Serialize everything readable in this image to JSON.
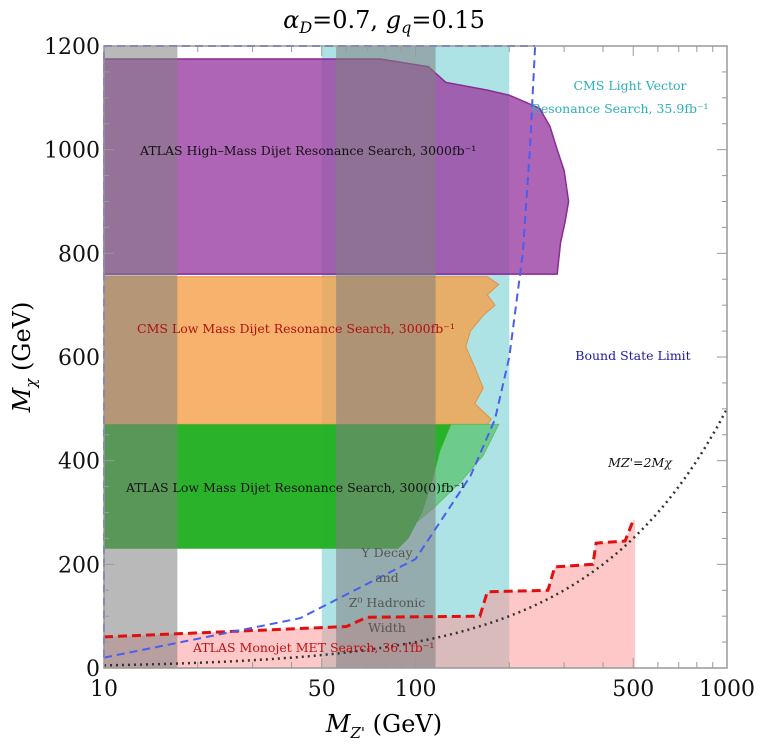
{
  "chart_data": {
    "type": "area",
    "title": "αD=0.7, gq=0.15",
    "xlabel": "MZ' (GeV)",
    "ylabel": "Mχ (GeV)",
    "xscale": "log",
    "xlim": [
      10,
      1000
    ],
    "ylim": [
      0,
      1200
    ],
    "xticks": [
      10,
      50,
      100,
      500,
      1000
    ],
    "yticks": [
      0,
      200,
      400,
      600,
      800,
      1000,
      1200
    ],
    "grid": false,
    "regions": [
      {
        "id": "upsilon-z0",
        "label_lines": [
          "Υ Decay",
          "and",
          "Z⁰ Hadronic",
          "Width"
        ],
        "color": "#808080",
        "x_ranges": [
          [
            10,
            17.2
          ],
          [
            55.6,
            116
          ]
        ]
      },
      {
        "id": "cms-light-vector",
        "label_lines": [
          "CMS Light Vector",
          "Resonance Search, 35.9fb⁻¹"
        ],
        "color": "#5ec8cc",
        "x_range": [
          50,
          200
        ]
      },
      {
        "id": "atlas-high-mass",
        "label": "ATLAS High–Mass Dijet Resonance Search, 3000fb⁻¹",
        "color": "#9b3fa3",
        "boundary": [
          [
            10,
            760
          ],
          [
            10,
            1175
          ],
          [
            77,
            1175
          ],
          [
            110,
            1160
          ],
          [
            125,
            1130
          ],
          [
            170,
            1115
          ],
          [
            200,
            1105
          ],
          [
            250,
            1080
          ],
          [
            270,
            1045
          ],
          [
            285,
            1000
          ],
          [
            300,
            960
          ],
          [
            310,
            900
          ],
          [
            302,
            860
          ],
          [
            292,
            820
          ],
          [
            285,
            760
          ]
        ]
      },
      {
        "id": "cms-low-mass",
        "label": "CMS Low Mass Dijet Resonance Search, 3000fb⁻¹",
        "color": "#f5a04a",
        "boundary": [
          [
            10,
            470
          ],
          [
            10,
            755
          ],
          [
            170,
            755
          ],
          [
            185,
            740
          ],
          [
            170,
            720
          ],
          [
            180,
            700
          ],
          [
            165,
            680
          ],
          [
            150,
            650
          ],
          [
            145,
            620
          ],
          [
            155,
            580
          ],
          [
            165,
            540
          ],
          [
            155,
            510
          ],
          [
            175,
            480
          ],
          [
            170,
            470
          ]
        ]
      },
      {
        "id": "atlas-low-mass",
        "label": "ATLAS Low Mass Dijet Resonance Search, 300(0)fb⁻¹",
        "color": "#1faf1f",
        "boundary": [
          [
            10,
            230
          ],
          [
            10,
            470
          ],
          [
            130,
            470
          ],
          [
            120,
            420
          ],
          [
            113,
            360
          ],
          [
            105,
            300
          ],
          [
            95,
            250
          ],
          [
            88,
            230
          ]
        ],
        "extension": [
          [
            130,
            470
          ],
          [
            185,
            470
          ],
          [
            165,
            410
          ],
          [
            140,
            360
          ],
          [
            115,
            310
          ],
          [
            100,
            280
          ],
          [
            105,
            300
          ],
          [
            113,
            360
          ],
          [
            120,
            420
          ]
        ]
      },
      {
        "id": "atlas-monojet",
        "label": "ATLAS Monojet MET Search, 36.1fb⁻¹",
        "color": "#ff9a9a",
        "boundary": [
          [
            10,
            60
          ],
          [
            50,
            78
          ],
          [
            60,
            80
          ],
          [
            70,
            98
          ],
          [
            161,
            100
          ],
          [
            170,
            147
          ],
          [
            266,
            150
          ],
          [
            280,
            195
          ],
          [
            371,
            200
          ],
          [
            380,
            241
          ],
          [
            471,
            245
          ],
          [
            500,
            285
          ],
          [
            507,
            285
          ]
        ]
      }
    ],
    "curves": [
      {
        "id": "bound-state-limit",
        "label": "Bound State Limit",
        "color": "#4a5ef0",
        "style": "dashed",
        "points": [
          [
            10,
            20
          ],
          [
            42.6,
            96
          ],
          [
            100,
            210
          ],
          [
            150,
            370
          ],
          [
            180,
            480
          ],
          [
            200,
            600
          ],
          [
            221,
            800
          ],
          [
            233,
            1000
          ],
          [
            242,
            1200
          ]
        ]
      },
      {
        "id": "mz-2mchi",
        "label": "MZ'=2Mχ",
        "color": "#333333",
        "style": "dotted",
        "relation": "Mχ = MZ'/2"
      }
    ]
  }
}
